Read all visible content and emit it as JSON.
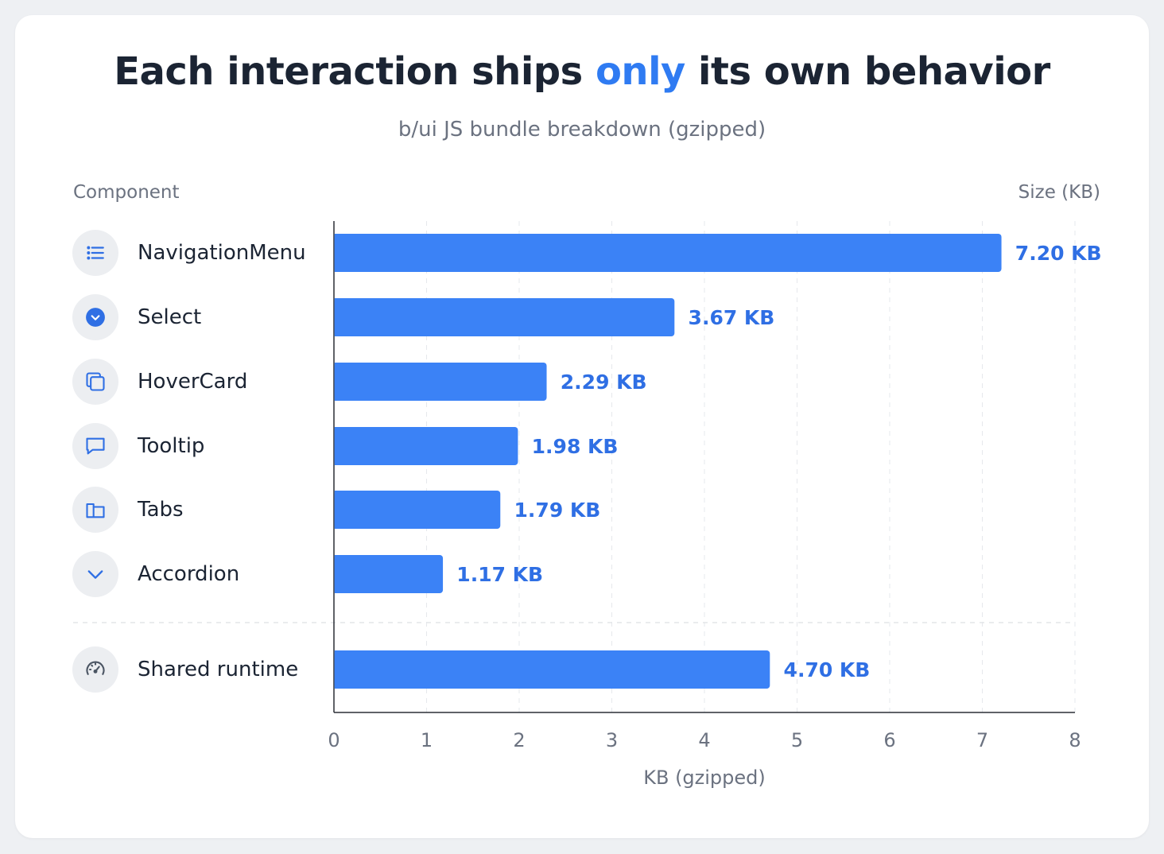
{
  "header": {
    "title_before": "Each interaction ships ",
    "title_highlight": "only",
    "title_after": " its own behavior",
    "subtitle": "b/ui JS bundle breakdown (gzipped)"
  },
  "columns": {
    "left": "Component",
    "right": "Size (KB)"
  },
  "colors": {
    "bar": "#3b82f6",
    "value_label": "#2f6fe4",
    "highlight": "#2f7bf2"
  },
  "chart_data": {
    "type": "bar",
    "orientation": "horizontal",
    "title": "Each interaction ships only its own behavior",
    "subtitle": "b/ui JS bundle breakdown (gzipped)",
    "xlabel": "KB (gzipped)",
    "xlim": [
      0,
      8
    ],
    "xticks": [
      "0",
      "1",
      "2",
      "3",
      "4",
      "5",
      "6",
      "7",
      "8"
    ],
    "grid": "vertical-dashed",
    "categories": [
      "NavigationMenu",
      "Select",
      "HoverCard",
      "Tooltip",
      "Tabs",
      "Accordion",
      "Shared runtime"
    ],
    "values": [
      7.2,
      3.67,
      2.29,
      1.98,
      1.79,
      1.17,
      4.7
    ],
    "value_labels": [
      "7.20 KB",
      "3.67 KB",
      "2.29 KB",
      "1.98 KB",
      "1.79 KB",
      "1.17 KB",
      "4.70 KB"
    ],
    "icons": [
      "list-icon",
      "chevron-circle-icon",
      "hover-card-icon",
      "tooltip-bubble-icon",
      "tabs-icon",
      "chevron-down-icon",
      "gauge-icon"
    ],
    "separator_before_last": true
  }
}
